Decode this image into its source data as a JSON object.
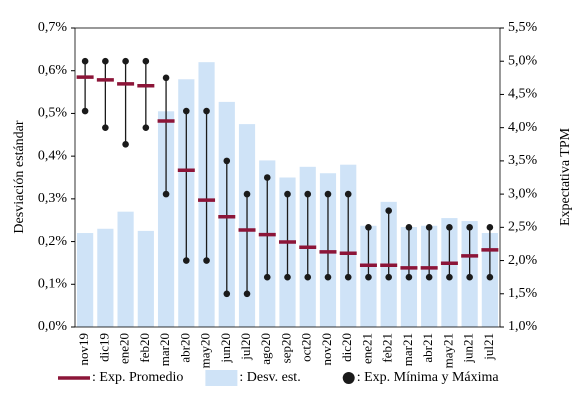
{
  "chart_data": {
    "type": "bar-range",
    "y_label": "Desviación estándar",
    "y2_label": "Expectativa TPM",
    "categories": [
      "nov19",
      "dic19",
      "ene20",
      "feb20",
      "mar20",
      "abr20",
      "may20",
      "jun20",
      "jul20",
      "ago20",
      "sep20",
      "oct20",
      "nov20",
      "dic20",
      "ene21",
      "feb21",
      "mar21",
      "abr21",
      "may21",
      "jun21",
      "jul21"
    ],
    "ylim": [
      0,
      0.7
    ],
    "yticks": [
      {
        "value": 0,
        "label": "0,0%"
      },
      {
        "value": 0.1,
        "label": "0,1%"
      },
      {
        "value": 0.2,
        "label": "0,2%"
      },
      {
        "value": 0.3,
        "label": "0,3%"
      },
      {
        "value": 0.4,
        "label": "0,4%"
      },
      {
        "value": 0.5,
        "label": "0,5%"
      },
      {
        "value": 0.6,
        "label": "0,6%"
      },
      {
        "value": 0.7,
        "label": "0,7%"
      }
    ],
    "y2lim": [
      1.0,
      5.5
    ],
    "y2ticks": [
      {
        "value": 1.0,
        "label": "1,0%"
      },
      {
        "value": 1.5,
        "label": "1,5%"
      },
      {
        "value": 2.0,
        "label": "2,0%"
      },
      {
        "value": 2.5,
        "label": "2,5%"
      },
      {
        "value": 3.0,
        "label": "3,0%"
      },
      {
        "value": 3.5,
        "label": "3,5%"
      },
      {
        "value": 4.0,
        "label": "4,0%"
      },
      {
        "value": 4.5,
        "label": "4,5%"
      },
      {
        "value": 5.0,
        "label": "5,0%"
      },
      {
        "value": 5.5,
        "label": "5,5%"
      }
    ],
    "series": [
      {
        "name": ": Exp. Promedio",
        "kind": "dash",
        "axis": "y2",
        "color": "#8c1538",
        "values": [
          4.76,
          4.72,
          4.66,
          4.63,
          4.1,
          3.36,
          2.91,
          2.66,
          2.46,
          2.39,
          2.28,
          2.2,
          2.13,
          2.11,
          1.93,
          1.93,
          1.89,
          1.89,
          1.96,
          2.07,
          2.16
        ]
      },
      {
        "name": ": Desv. est.",
        "kind": "bar",
        "axis": "y",
        "color": "#cfe3f7",
        "values": [
          0.22,
          0.23,
          0.27,
          0.225,
          0.505,
          0.58,
          0.62,
          0.527,
          0.475,
          0.39,
          0.35,
          0.375,
          0.36,
          0.38,
          0.237,
          0.293,
          0.234,
          0.237,
          0.255,
          0.248,
          0.22
        ]
      },
      {
        "name": ": Exp. Mínima y Máxima",
        "kind": "range",
        "axis": "y2",
        "color": "#1a1a1a",
        "low": [
          4.25,
          4.0,
          3.75,
          4.0,
          3.0,
          2.0,
          2.0,
          1.5,
          1.5,
          1.75,
          1.75,
          1.75,
          1.75,
          1.75,
          1.75,
          1.75,
          1.75,
          1.75,
          1.75,
          1.75,
          1.75
        ],
        "high": [
          5.0,
          5.0,
          5.0,
          5.0,
          4.75,
          4.25,
          4.25,
          3.5,
          3.0,
          3.25,
          3.0,
          3.0,
          3.0,
          3.0,
          2.5,
          2.75,
          2.5,
          2.5,
          2.5,
          2.5,
          2.5
        ]
      }
    ]
  }
}
